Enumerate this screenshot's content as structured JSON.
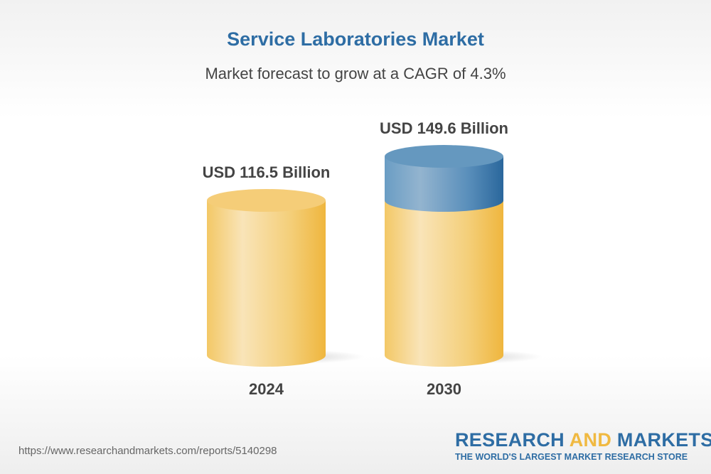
{
  "title": "Service Laboratories Market",
  "subtitle": "Market forecast to grow at a CAGR of 4.3%",
  "chart_data": {
    "type": "bar",
    "categories": [
      "2024",
      "2030"
    ],
    "values": [
      116.5,
      149.6
    ],
    "data_labels": [
      "USD 116.5 Billion",
      "USD 149.6 Billion"
    ],
    "unit": "USD Billion",
    "colors": {
      "base": "#f0b941",
      "growth": "#2e6da4"
    }
  },
  "footer": {
    "url": "https://www.researchandmarkets.com/reports/5140298",
    "logo_part1": "RESEARCH ",
    "logo_part2": "AND",
    "logo_part3": " MARKETS",
    "tagline": "THE WORLD'S LARGEST MARKET RESEARCH STORE"
  }
}
